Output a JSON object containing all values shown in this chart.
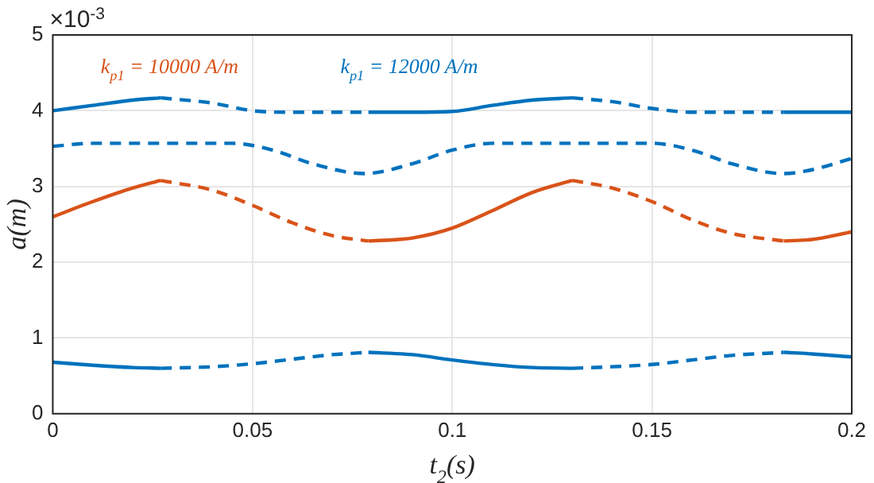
{
  "chart_data": {
    "type": "line",
    "xlabel": "t$_{2}$(s)",
    "ylabel": "a(m)",
    "annotations": [
      "×10$^{-3}$"
    ],
    "xlim": [
      0,
      0.2
    ],
    "xticks": [
      0,
      0.05,
      0.1,
      0.15,
      0.2
    ],
    "ylim": [
      0,
      5
    ],
    "yticks": [
      0,
      1,
      2,
      3,
      4,
      5
    ],
    "grid": true,
    "legend": false,
    "series": [
      {
        "name": "k$_{p1}$ = 10000 A/m",
        "color": "#d95319",
        "line_style": "solid",
        "x": [
          0,
          0.01,
          0.02,
          0.027
        ],
        "values": [
          2.6,
          2.8,
          2.98,
          3.08
        ]
      },
      {
        "color": "#d95319",
        "line_style": "dashed",
        "x": [
          0.027,
          0.04,
          0.05,
          0.06,
          0.07,
          0.079
        ],
        "values": [
          3.08,
          2.95,
          2.75,
          2.52,
          2.35,
          2.28
        ]
      },
      {
        "color": "#d95319",
        "line_style": "solid",
        "x": [
          0.079,
          0.09,
          0.1,
          0.11,
          0.12,
          0.13
        ],
        "values": [
          2.28,
          2.32,
          2.45,
          2.68,
          2.92,
          3.08
        ]
      },
      {
        "color": "#d95319",
        "line_style": "dashed",
        "x": [
          0.13,
          0.14,
          0.15,
          0.16,
          0.17,
          0.183
        ],
        "values": [
          3.08,
          2.98,
          2.8,
          2.56,
          2.38,
          2.28
        ]
      },
      {
        "color": "#d95319",
        "line_style": "solid",
        "x": [
          0.183,
          0.19,
          0.2
        ],
        "values": [
          2.28,
          2.3,
          2.4
        ]
      },
      {
        "name": "k$_{p1}$ = 12000 A/m",
        "color": "#0072bd",
        "line_style": "solid",
        "x": [
          0,
          0.01,
          0.02,
          0.027
        ],
        "values": [
          4.0,
          4.07,
          4.14,
          4.17
        ]
      },
      {
        "color": "#0072bd",
        "line_style": "dashed",
        "x": [
          0.027,
          0.04,
          0.05,
          0.06,
          0.079
        ],
        "values": [
          4.17,
          4.1,
          4.0,
          3.98,
          3.98
        ]
      },
      {
        "color": "#0072bd",
        "line_style": "solid",
        "x": [
          0.079,
          0.09,
          0.1,
          0.11,
          0.12,
          0.13
        ],
        "values": [
          3.98,
          3.98,
          3.99,
          4.07,
          4.14,
          4.17
        ]
      },
      {
        "color": "#0072bd",
        "line_style": "dashed",
        "x": [
          0.13,
          0.14,
          0.15,
          0.16,
          0.183
        ],
        "values": [
          4.17,
          4.12,
          4.03,
          3.98,
          3.98
        ]
      },
      {
        "color": "#0072bd",
        "line_style": "solid",
        "x": [
          0.183,
          0.2
        ],
        "values": [
          3.98,
          3.98
        ]
      },
      {
        "color": "#0072bd",
        "line_style": "dashed",
        "x": [
          0,
          0.01,
          0.045,
          0.055,
          0.065,
          0.078,
          0.09,
          0.1,
          0.11,
          0.15,
          0.16,
          0.17,
          0.183,
          0.19,
          0.2
        ],
        "values": [
          3.53,
          3.57,
          3.57,
          3.48,
          3.3,
          3.17,
          3.3,
          3.48,
          3.57,
          3.57,
          3.48,
          3.3,
          3.17,
          3.22,
          3.37
        ]
      },
      {
        "color": "#0072bd",
        "line_style": "solid",
        "x": [
          0,
          0.01,
          0.02,
          0.027
        ],
        "values": [
          0.68,
          0.64,
          0.61,
          0.6
        ]
      },
      {
        "color": "#0072bd",
        "line_style": "dashed",
        "x": [
          0.027,
          0.04,
          0.05,
          0.06,
          0.07,
          0.079
        ],
        "values": [
          0.6,
          0.62,
          0.66,
          0.72,
          0.78,
          0.81
        ]
      },
      {
        "color": "#0072bd",
        "line_style": "solid",
        "x": [
          0.079,
          0.09,
          0.1,
          0.11,
          0.12,
          0.13
        ],
        "values": [
          0.81,
          0.78,
          0.71,
          0.65,
          0.61,
          0.6
        ]
      },
      {
        "color": "#0072bd",
        "line_style": "dashed",
        "x": [
          0.13,
          0.14,
          0.15,
          0.16,
          0.17,
          0.183
        ],
        "values": [
          0.6,
          0.62,
          0.65,
          0.71,
          0.77,
          0.81
        ]
      },
      {
        "color": "#0072bd",
        "line_style": "solid",
        "x": [
          0.183,
          0.19,
          0.2
        ],
        "values": [
          0.81,
          0.79,
          0.75
        ]
      }
    ]
  }
}
